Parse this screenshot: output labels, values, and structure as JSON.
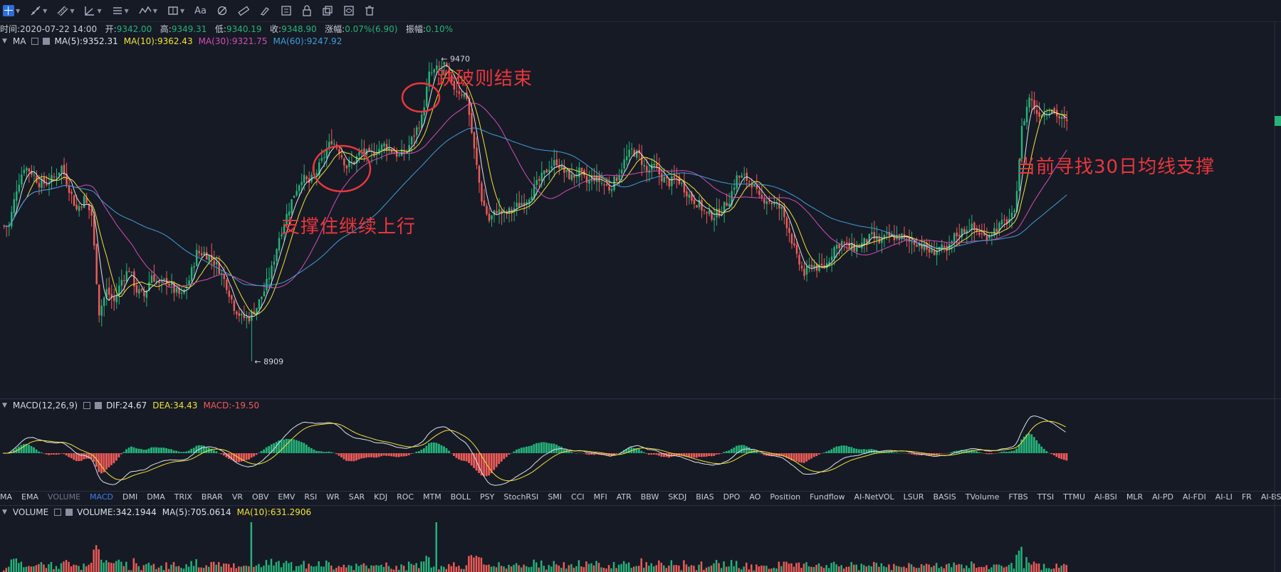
{
  "toolbar": {
    "tools": [
      "crosshair-icon",
      "trend-line-icon",
      "parallel-channel-icon",
      "angle-icon",
      "horizontal-lines-icon",
      "wave-icon",
      "rectangle-icon",
      "text-icon",
      "fibonacci-icon",
      "ruler-icon",
      "brush-icon",
      "group-icon",
      "lock-icon",
      "duplicate-icon",
      "visibility-icon",
      "trash-icon"
    ],
    "text_tool_label": "Aa"
  },
  "info": {
    "time_label": "时间:",
    "time": "2020-07-22 14:00",
    "open_label": "开:",
    "open": "9342.00",
    "high_label": "高:",
    "high": "9349.31",
    "low_label": "低:",
    "low": "9340.19",
    "close_label": "收:",
    "close": "9348.90",
    "change_label": "涨幅:",
    "change": "0.07%(6.90)",
    "amp_label": "振幅:",
    "amp": "0.10%"
  },
  "ma_legend": {
    "name": "MA",
    "items": [
      {
        "label": "MA(5):9352.31",
        "color": "#dfe2e8"
      },
      {
        "label": "MA(10):9362.43",
        "color": "#f2e33a"
      },
      {
        "label": "MA(30):9321.75",
        "color": "#d24fb5"
      },
      {
        "label": "MA(60):9247.92",
        "color": "#3f9ed8"
      }
    ]
  },
  "macd_legend": {
    "name": "MACD(12,26,9)",
    "items": [
      {
        "label": "DIF:24.67",
        "color": "#dfe2e8"
      },
      {
        "label": "DEA:34.43",
        "color": "#f2e33a"
      },
      {
        "label": "MACD:-19.50",
        "color": "#ef5b58"
      }
    ]
  },
  "volume_legend": {
    "name": "VOLUME",
    "items": [
      {
        "label": "VOLUME:342.1944",
        "color": "#dfe2e8"
      },
      {
        "label": "MA(5):705.0614",
        "color": "#dfe2e8"
      },
      {
        "label": "MA(10):631.2906",
        "color": "#f2e33a"
      }
    ]
  },
  "indicator_tabs": [
    "MA",
    "EMA",
    "VOLUME",
    "MACD",
    "DMI",
    "DMA",
    "TRIX",
    "BRAR",
    "VR",
    "OBV",
    "EMV",
    "RSI",
    "WR",
    "SAR",
    "KDJ",
    "ROC",
    "MTM",
    "BOLL",
    "PSY",
    "StochRSI",
    "SMI",
    "CCI",
    "MFI",
    "ATR",
    "BBW",
    "SKDJ",
    "BIAS",
    "DPO",
    "AO",
    "Position",
    "Fundflow",
    "AI-NetVOL",
    "LSUR",
    "BASIS",
    "TVolume",
    "FTBS",
    "TTSI",
    "TTMU",
    "AI-BSI",
    "MLR",
    "AI-PD",
    "AI-FDI",
    "AI-LI",
    "FR",
    "AI-BST"
  ],
  "active_tab": "MACD",
  "dim_tab": "VOLUME",
  "annotations": {
    "support": "支撑住继续上行",
    "breakdown": "跌破则结束",
    "current": "当前寻找30日均线支撑"
  },
  "colors": {
    "background": "#161a25",
    "up": "#26b27a",
    "down": "#ef5b58",
    "annotation": "#e8373c",
    "last_price_tag": "#26b27a"
  },
  "chart_data": [
    {
      "type": "candlestick",
      "pair_interval_note": "",
      "max_label": "9470",
      "min_label": "8909",
      "max_value": 9470,
      "min_value": 8909,
      "ylim": [
        8860,
        9500
      ],
      "closes": [
        9160,
        9230,
        9270,
        9260,
        9240,
        9240,
        9250,
        9270,
        9230,
        9190,
        9210,
        9180,
        9000,
        9040,
        9020,
        9060,
        9080,
        9040,
        9030,
        9070,
        9050,
        9060,
        9040,
        9030,
        9060,
        9110,
        9110,
        9100,
        9080,
        9050,
        9010,
        8990,
        8990,
        9010,
        9040,
        9080,
        9140,
        9180,
        9220,
        9250,
        9240,
        9260,
        9290,
        9320,
        9300,
        9270,
        9280,
        9300,
        9290,
        9300,
        9310,
        9300,
        9290,
        9300,
        9330,
        9360,
        9440,
        9450,
        9460,
        9420,
        9410,
        9400,
        9300,
        9210,
        9170,
        9190,
        9180,
        9190,
        9200,
        9210,
        9230,
        9250,
        9270,
        9280,
        9260,
        9250,
        9260,
        9240,
        9250,
        9240,
        9230,
        9250,
        9280,
        9300,
        9290,
        9260,
        9270,
        9250,
        9240,
        9250,
        9230,
        9210,
        9200,
        9180,
        9180,
        9190,
        9210,
        9250,
        9250,
        9240,
        9210,
        9210,
        9200,
        9190,
        9150,
        9100,
        9070,
        9090,
        9080,
        9090,
        9120,
        9130,
        9120,
        9120,
        9130,
        9140,
        9130,
        9140,
        9140,
        9140,
        9130,
        9130,
        9120,
        9110,
        9120,
        9110,
        9140,
        9150,
        9160,
        9150,
        9140,
        9150,
        9160,
        9170,
        9180,
        9340,
        9400,
        9370,
        9370,
        9380,
        9360,
        9350
      ],
      "legend_series": [
        "MA(5)",
        "MA(10)",
        "MA(30)",
        "MA(60)"
      ]
    },
    {
      "type": "bar",
      "name": "MACD(12,26,9)",
      "series_names": [
        "DIF",
        "DEA",
        "MACD"
      ],
      "dif": 24.67,
      "dea": 34.43,
      "macd": -19.5
    },
    {
      "type": "bar",
      "name": "VOLUME",
      "volume": 342.1944,
      "ma5": 705.0614,
      "ma10": 631.2906
    }
  ]
}
